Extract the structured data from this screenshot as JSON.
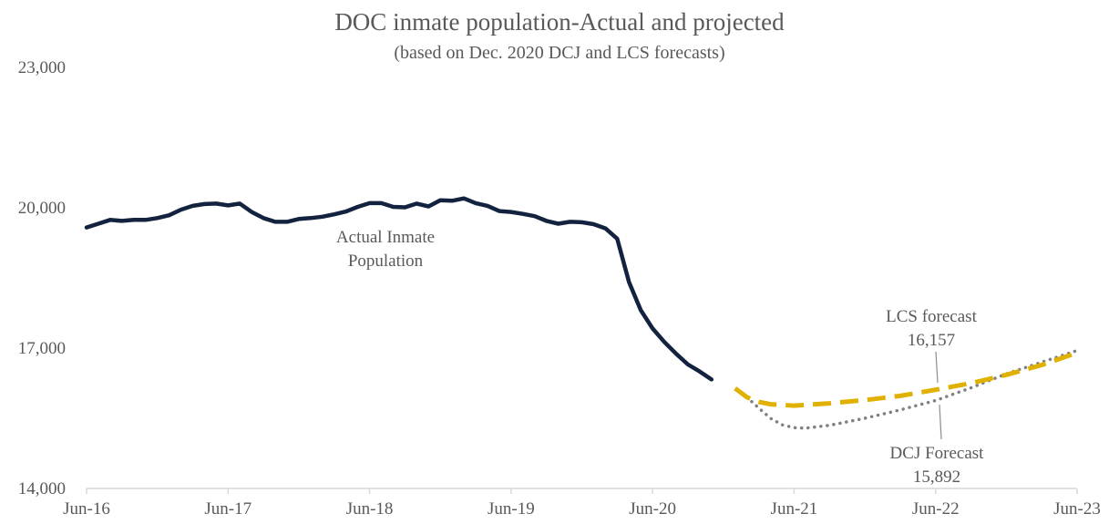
{
  "chart_data": {
    "type": "line",
    "title": "DOC inmate population-Actual and projected",
    "subtitle": "(based on Dec. 2020 DCJ and LCS forecasts)",
    "xlabel": "",
    "ylabel": "",
    "x_ticks": [
      "Jun-16",
      "Jun-17",
      "Jun-18",
      "Jun-19",
      "Jun-20",
      "Jun-21",
      "Jun-22",
      "Jun-23"
    ],
    "y_ticks": [
      "14,000",
      "17,000",
      "20,000",
      "23,000"
    ],
    "ylim": [
      14000,
      23000
    ],
    "x_unit": "months since Jun-16",
    "xlim": [
      0,
      84
    ],
    "grid": false,
    "legend": "none",
    "series": [
      {
        "name": "Actual Inmate Population",
        "color": "#13233f",
        "style": "solid",
        "x": [
          0,
          1,
          2,
          3,
          4,
          5,
          6,
          7,
          8,
          9,
          10,
          11,
          12,
          13,
          14,
          15,
          16,
          17,
          18,
          19,
          20,
          21,
          22,
          23,
          24,
          25,
          26,
          27,
          28,
          29,
          30,
          31,
          32,
          33,
          34,
          35,
          36,
          37,
          38,
          39,
          40,
          41,
          42,
          43,
          44,
          45,
          46,
          47,
          48,
          49,
          50,
          51,
          52,
          53
        ],
        "values": [
          19580,
          19660,
          19740,
          19720,
          19740,
          19740,
          19780,
          19840,
          19960,
          20040,
          20080,
          20090,
          20050,
          20090,
          19910,
          19780,
          19700,
          19700,
          19760,
          19780,
          19810,
          19860,
          19920,
          20020,
          20100,
          20100,
          20020,
          20010,
          20090,
          20030,
          20160,
          20150,
          20200,
          20100,
          20040,
          19930,
          19910,
          19870,
          19820,
          19720,
          19660,
          19700,
          19690,
          19650,
          19560,
          19340,
          18410,
          17810,
          17420,
          17130,
          16880,
          16650,
          16500,
          16330
        ]
      },
      {
        "name": "LCS forecast",
        "color": "#e0b100",
        "style": "dashed",
        "x": [
          55,
          56,
          57,
          58,
          60,
          63,
          66,
          69,
          72,
          75,
          78,
          81,
          84
        ],
        "values": [
          16140,
          15950,
          15850,
          15800,
          15770,
          15820,
          15890,
          15980,
          16110,
          16250,
          16430,
          16640,
          16900
        ]
      },
      {
        "name": "DCJ Forecast",
        "color": "#808080",
        "style": "dotted",
        "x": [
          56,
          57,
          58,
          59,
          60,
          61,
          63,
          66,
          69,
          72,
          75,
          78,
          81,
          84
        ],
        "values": [
          15950,
          15720,
          15500,
          15360,
          15300,
          15290,
          15350,
          15500,
          15680,
          15880,
          16150,
          16450,
          16700,
          16950
        ]
      }
    ],
    "annotations": [
      {
        "text": [
          "Actual Inmate",
          "Population"
        ]
      },
      {
        "text": [
          "LCS forecast",
          "16,157"
        ]
      },
      {
        "text": [
          "DCJ Forecast",
          "15,892"
        ]
      }
    ]
  }
}
